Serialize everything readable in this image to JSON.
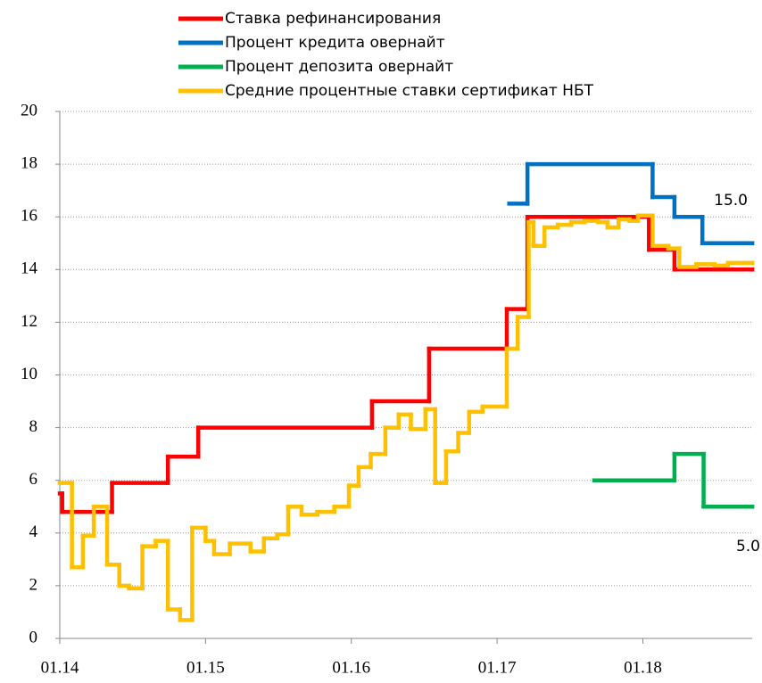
{
  "chart_data": {
    "type": "step-line",
    "xlim": [
      0,
      57
    ],
    "xticks": [
      {
        "value": 0,
        "label": "01.14"
      },
      {
        "value": 12,
        "label": "01.15"
      },
      {
        "value": 24,
        "label": "01.16"
      },
      {
        "value": 36,
        "label": "01.17"
      },
      {
        "value": 48,
        "label": "01.18"
      }
    ],
    "ylim": [
      0,
      20
    ],
    "yticks": [
      0,
      2,
      4,
      6,
      8,
      10,
      12,
      14,
      16,
      18,
      20
    ],
    "grid": true,
    "series": [
      {
        "name": "Ставка рефинансирования",
        "color": "#ff0000",
        "x": [
          0,
          0.2,
          4.3,
          8.9,
          11.4,
          25.7,
          30.4,
          36.8,
          38.5,
          48.5,
          50.6,
          57
        ],
        "values": [
          5.5,
          4.8,
          5.9,
          6.9,
          8.0,
          9.0,
          11.0,
          12.5,
          16.0,
          14.75,
          14.0,
          14.0
        ]
      },
      {
        "name": "Процент кредита овернайт",
        "color": "#0070c0",
        "x": [
          37,
          38.5,
          48.8,
          50.6,
          52.9,
          57
        ],
        "values": [
          16.5,
          18,
          16.75,
          16,
          15,
          15
        ]
      },
      {
        "name": "Процент депозита овернайт",
        "color": "#00b050",
        "x": [
          44,
          50.6,
          53,
          57
        ],
        "values": [
          6,
          7,
          5,
          5
        ]
      },
      {
        "name": "Средние процентные ставки сертификат НБТ",
        "color": "#ffc000",
        "x": [
          0,
          1.0,
          1.9,
          2.8,
          3.9,
          4.9,
          5.7,
          6.8,
          7.9,
          8.9,
          9.9,
          10.9,
          12.0,
          12.7,
          14.0,
          15.7,
          16.8,
          17.9,
          18.8,
          19.9,
          21.2,
          22.6,
          23.8,
          24.6,
          25.6,
          26.8,
          27.9,
          28.9,
          30.1,
          30.9,
          31.8,
          32.8,
          33.7,
          34.8,
          36.8,
          37.7,
          38.6,
          39.0,
          39.9,
          41.0,
          42.1,
          43.2,
          44.3,
          45.1,
          46.0,
          46.9,
          47.6,
          48.8,
          50.1,
          51.0,
          52.4,
          53.9,
          55.0,
          57
        ],
        "values": [
          5.9,
          2.7,
          3.9,
          5.0,
          2.8,
          2.0,
          1.9,
          3.5,
          3.7,
          1.1,
          0.7,
          4.2,
          3.7,
          3.2,
          3.6,
          3.3,
          3.8,
          3.95,
          5.0,
          4.7,
          4.8,
          5.0,
          5.8,
          6.5,
          7.0,
          8.0,
          8.5,
          7.95,
          8.7,
          5.9,
          7.1,
          7.8,
          8.6,
          8.8,
          11.0,
          12.2,
          15.8,
          14.9,
          15.6,
          15.7,
          15.8,
          15.85,
          15.8,
          15.6,
          15.9,
          15.85,
          16.05,
          14.9,
          14.8,
          14.1,
          14.2,
          14.15,
          14.25,
          14.25
        ]
      }
    ],
    "annotations": [
      "15.0",
      "5.0"
    ]
  }
}
